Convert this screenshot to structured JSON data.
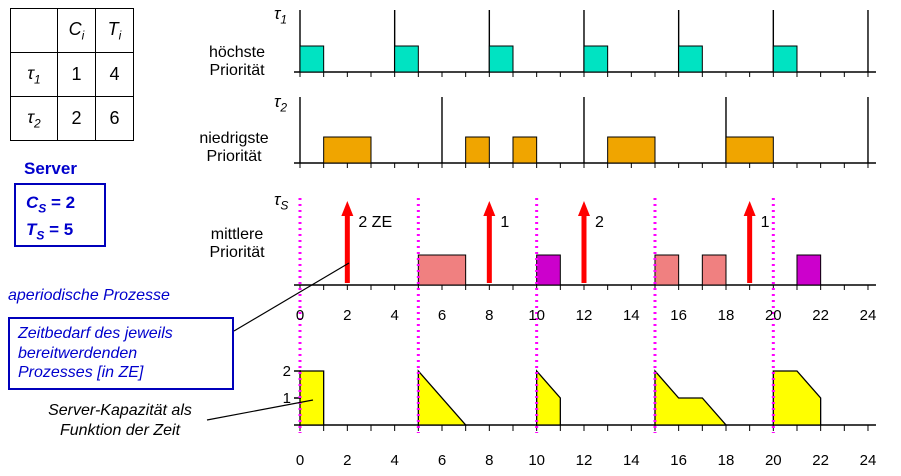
{
  "task_table": {
    "headers": {
      "c": {
        "base": "C",
        "sub": "i"
      },
      "t": {
        "base": "T",
        "sub": "i"
      }
    },
    "rows": [
      {
        "task": {
          "base": "τ",
          "sub": "1"
        },
        "c": "1",
        "t": "4"
      },
      {
        "task": {
          "base": "τ",
          "sub": "2"
        },
        "c": "2",
        "t": "6"
      }
    ]
  },
  "server": {
    "heading": "Server",
    "capacity": {
      "base": "C",
      "sub": "S",
      "rest": " = 2"
    },
    "period": {
      "base": "T",
      "sub": "S",
      "rest": " = 5"
    }
  },
  "labels": {
    "aperiodic": "aperiodische Prozesse",
    "note": "Zeitbedarf des jeweils\nbereitwerdenden\nProzesses [in ZE]",
    "capacity_caption": "Server-Kapazität als\nFunktion der Zeit",
    "tau1": {
      "base": "τ",
      "sub": "1"
    },
    "tau2": {
      "base": "τ",
      "sub": "2"
    },
    "tauS": {
      "base": "τ",
      "sub": "S"
    },
    "priority_high": "höchste\nPriorität",
    "priority_low": "niedrigste\nPriorität",
    "priority_mid": "mittlere\nPriorität"
  },
  "diagram": {
    "time_end": 24,
    "axis_numbers": [
      "0",
      "2",
      "4",
      "6",
      "8",
      "10",
      "12",
      "14",
      "16",
      "18",
      "20",
      "22",
      "24"
    ],
    "colors": {
      "tau1_block": "#00e3c2",
      "tau2_block": "#f0a500",
      "server_block": "#f08080",
      "server_block_alt": "#cc00cc",
      "arrival_arrow": "#ff0000",
      "replenishment_line": "#ff00ff",
      "capacity_fill": "#ffff00"
    },
    "rows": [
      {
        "name": "tau1",
        "releases": [
          0,
          4,
          8,
          12,
          16,
          20,
          24
        ],
        "blocks": [
          {
            "s": 0,
            "e": 1
          },
          {
            "s": 4,
            "e": 5
          },
          {
            "s": 8,
            "e": 9
          },
          {
            "s": 12,
            "e": 13
          },
          {
            "s": 16,
            "e": 17
          },
          {
            "s": 20,
            "e": 21
          }
        ],
        "color": "tau1_block"
      },
      {
        "name": "tau2",
        "releases": [
          0,
          6,
          12,
          18,
          24
        ],
        "blocks": [
          {
            "s": 1,
            "e": 3
          },
          {
            "s": 7,
            "e": 8
          },
          {
            "s": 9,
            "e": 10
          },
          {
            "s": 13,
            "e": 15
          },
          {
            "s": 18,
            "e": 20
          }
        ],
        "color": "tau2_block"
      },
      {
        "name": "server",
        "releases": [],
        "blocks": [
          {
            "s": 5,
            "e": 7,
            "c": "server_block"
          },
          {
            "s": 10,
            "e": 11,
            "c": "server_block_alt"
          },
          {
            "s": 15,
            "e": 16,
            "c": "server_block"
          },
          {
            "s": 17,
            "e": 18,
            "c": "server_block"
          },
          {
            "s": 21,
            "e": 22,
            "c": "server_block_alt"
          }
        ],
        "color": "server_block"
      }
    ],
    "arrivals": [
      {
        "t": 2,
        "label": "2 ZE"
      },
      {
        "t": 8,
        "label": "1"
      },
      {
        "t": 12,
        "label": "2"
      },
      {
        "t": 19,
        "label": "1"
      }
    ],
    "replenishments": [
      0,
      5,
      10,
      15,
      20
    ],
    "capacity": {
      "ylabels": [
        {
          "value": "2",
          "level": 2
        },
        {
          "value": "1",
          "level": 1
        }
      ],
      "profiles": [
        [
          [
            0,
            2
          ],
          [
            1,
            2
          ],
          [
            1,
            0
          ]
        ],
        [
          [
            5,
            2
          ],
          [
            7,
            0
          ]
        ],
        [
          [
            10,
            2
          ],
          [
            11,
            1
          ],
          [
            11,
            0
          ]
        ],
        [
          [
            15,
            2
          ],
          [
            16,
            1
          ],
          [
            17,
            1
          ],
          [
            18,
            0
          ]
        ],
        [
          [
            20,
            2
          ],
          [
            21,
            2
          ],
          [
            22,
            1
          ],
          [
            22,
            0
          ]
        ]
      ]
    }
  }
}
